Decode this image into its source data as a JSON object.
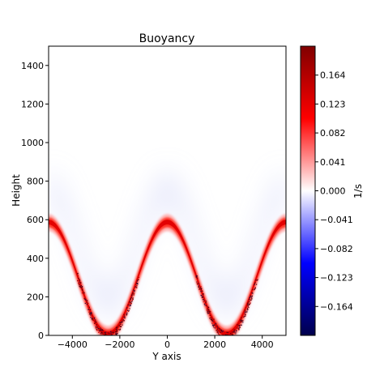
{
  "chart_data": {
    "type": "heatmap",
    "title": "Buoyancy",
    "xlabel": "Y axis",
    "ylabel": "Height",
    "xlim": [
      -5000,
      5000
    ],
    "ylim": [
      0,
      1500
    ],
    "x_ticks": [
      -4000,
      -2000,
      0,
      2000,
      4000
    ],
    "y_ticks": [
      0,
      200,
      400,
      600,
      800,
      1000,
      1200,
      1400
    ],
    "colormap": "seismic",
    "colorbar": {
      "label": "1/s",
      "vmin": -0.205,
      "vmax": 0.205,
      "ticks": [
        0.164,
        0.123,
        0.082,
        0.041,
        0.0,
        -0.041,
        -0.082,
        -0.123,
        -0.164
      ],
      "tick_labels": [
        "0.164",
        "0.123",
        "0.082",
        "0.041",
        "0.000",
        "−0.041",
        "−0.082",
        "−0.123",
        "−0.164"
      ]
    },
    "field_profile": {
      "description_free": true,
      "valley_x": [
        -2500,
        2500
      ],
      "peak_x": [
        -5000,
        0,
        5000
      ],
      "surface_height_at_peaks": 600,
      "surface_height_at_valleys": 20,
      "max_value": 0.2,
      "weak_negative_layer_value": -0.02
    }
  },
  "colors": {
    "positive_strong": "#800000",
    "positive": "#ff0000",
    "neutral": "#ffffff",
    "negative": "#0000ff",
    "negative_strong": "#000080"
  }
}
